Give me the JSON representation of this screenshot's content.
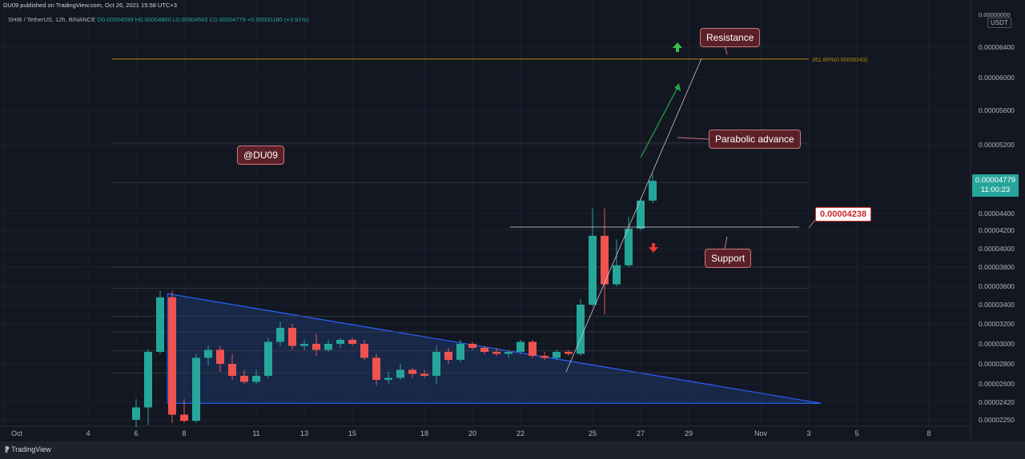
{
  "header": {
    "published": "DU09 published on TradingView.com, Oct 26, 2021 15:58 UTC+3",
    "symbol": "SHIB / TetherUS, 12h, BINANCE",
    "ohlc": "O0.00004599 H0.00004860 L0.00004565 C0.00004779 +0.00000180 (+3.91%)"
  },
  "footer": {
    "logo": "TradingView"
  },
  "callouts": {
    "resistance": "Resistance",
    "parabolic": "Parabolic advance",
    "support": "Support",
    "watermark": "@DU09",
    "price_tag": "0.00004238"
  },
  "price_axis": {
    "currency": "USDT",
    "top": "0.00000000",
    "current": "0.00004779",
    "countdown": "11:00:23"
  },
  "fib": {
    "ext_label": "261.80%(0.00006243)"
  },
  "colors": {
    "up": "#26a69a",
    "down": "#ef5350",
    "background": "#131722",
    "triangle": "#2962ff",
    "fib": "#b8860b"
  },
  "chart_data": {
    "type": "candlestick",
    "x_tick_labels": [
      "Oct",
      "4",
      "6",
      "8",
      "11",
      "13",
      "15",
      "18",
      "20",
      "22",
      "25",
      "27",
      "29",
      "Nov",
      "3",
      "5",
      "8"
    ],
    "y_tick_labels": [
      "0.00006400",
      "0.00006000",
      "0.00005600",
      "0.00005200",
      "0.00004400",
      "0.00004200",
      "0.00004000",
      "0.00003800",
      "0.00003600",
      "0.00003400",
      "0.00003200",
      "0.00003000",
      "0.00002800",
      "0.00002600",
      "0.00002420",
      "0.00002250"
    ],
    "y_ticks": [
      6.4,
      6.0,
      5.6,
      5.2,
      4.4,
      4.2,
      4.0,
      3.8,
      3.6,
      3.4,
      3.2,
      3.0,
      2.8,
      2.6,
      2.42,
      2.25
    ],
    "price_scale": "x 1e-5",
    "candles": [
      {
        "x": 5.5,
        "o": 2.25,
        "h": 2.45,
        "l": 2.18,
        "c": 2.37
      },
      {
        "x": 6.0,
        "o": 2.37,
        "h": 2.95,
        "l": 2.2,
        "c": 2.92
      },
      {
        "x": 6.5,
        "o": 2.92,
        "h": 3.55,
        "l": 2.9,
        "c": 3.48
      },
      {
        "x": 7.0,
        "o": 3.48,
        "h": 3.55,
        "l": 2.22,
        "c": 2.3
      },
      {
        "x": 7.5,
        "o": 2.3,
        "h": 2.45,
        "l": 2.22,
        "c": 2.24
      },
      {
        "x": 8.0,
        "o": 2.24,
        "h": 2.9,
        "l": 2.22,
        "c": 2.86
      },
      {
        "x": 8.5,
        "o": 2.86,
        "h": 2.98,
        "l": 2.78,
        "c": 2.94
      },
      {
        "x": 9.0,
        "o": 2.94,
        "h": 2.98,
        "l": 2.72,
        "c": 2.8
      },
      {
        "x": 9.5,
        "o": 2.8,
        "h": 2.9,
        "l": 2.64,
        "c": 2.68
      },
      {
        "x": 10.0,
        "o": 2.68,
        "h": 2.74,
        "l": 2.6,
        "c": 2.62
      },
      {
        "x": 10.5,
        "o": 2.62,
        "h": 2.74,
        "l": 2.6,
        "c": 2.68
      },
      {
        "x": 11.0,
        "o": 2.68,
        "h": 3.06,
        "l": 2.66,
        "c": 3.02
      },
      {
        "x": 11.5,
        "o": 3.02,
        "h": 3.22,
        "l": 2.98,
        "c": 3.16
      },
      {
        "x": 12.0,
        "o": 3.16,
        "h": 3.2,
        "l": 2.94,
        "c": 2.98
      },
      {
        "x": 12.5,
        "o": 2.98,
        "h": 3.04,
        "l": 2.94,
        "c": 3.0
      },
      {
        "x": 13.0,
        "o": 3.0,
        "h": 3.1,
        "l": 2.88,
        "c": 2.94
      },
      {
        "x": 13.5,
        "o": 2.94,
        "h": 3.04,
        "l": 2.92,
        "c": 3.0
      },
      {
        "x": 14.0,
        "o": 3.0,
        "h": 3.06,
        "l": 2.96,
        "c": 3.04
      },
      {
        "x": 14.5,
        "o": 3.04,
        "h": 3.06,
        "l": 2.98,
        "c": 3.0
      },
      {
        "x": 15.0,
        "o": 3.0,
        "h": 3.04,
        "l": 2.84,
        "c": 2.86
      },
      {
        "x": 15.5,
        "o": 2.86,
        "h": 2.9,
        "l": 2.58,
        "c": 2.64
      },
      {
        "x": 16.0,
        "o": 2.64,
        "h": 2.72,
        "l": 2.6,
        "c": 2.66
      },
      {
        "x": 16.5,
        "o": 2.66,
        "h": 2.8,
        "l": 2.64,
        "c": 2.74
      },
      {
        "x": 17.0,
        "o": 2.74,
        "h": 2.76,
        "l": 2.66,
        "c": 2.7
      },
      {
        "x": 17.5,
        "o": 2.7,
        "h": 2.74,
        "l": 2.66,
        "c": 2.68
      },
      {
        "x": 18.0,
        "o": 2.68,
        "h": 2.98,
        "l": 2.6,
        "c": 2.92
      },
      {
        "x": 18.5,
        "o": 2.92,
        "h": 2.96,
        "l": 2.8,
        "c": 2.84
      },
      {
        "x": 19.0,
        "o": 2.84,
        "h": 3.04,
        "l": 2.82,
        "c": 3.0
      },
      {
        "x": 19.5,
        "o": 3.0,
        "h": 3.02,
        "l": 2.94,
        "c": 2.96
      },
      {
        "x": 20.0,
        "o": 2.96,
        "h": 2.98,
        "l": 2.9,
        "c": 2.92
      },
      {
        "x": 20.5,
        "o": 2.92,
        "h": 2.96,
        "l": 2.88,
        "c": 2.9
      },
      {
        "x": 21.0,
        "o": 2.9,
        "h": 2.94,
        "l": 2.86,
        "c": 2.92
      },
      {
        "x": 21.5,
        "o": 2.92,
        "h": 3.04,
        "l": 2.9,
        "c": 3.02
      },
      {
        "x": 22.0,
        "o": 3.02,
        "h": 3.04,
        "l": 2.86,
        "c": 2.88
      },
      {
        "x": 22.5,
        "o": 2.88,
        "h": 2.92,
        "l": 2.84,
        "c": 2.86
      },
      {
        "x": 23.0,
        "o": 2.86,
        "h": 2.94,
        "l": 2.84,
        "c": 2.92
      },
      {
        "x": 23.5,
        "o": 2.92,
        "h": 2.94,
        "l": 2.88,
        "c": 2.9
      },
      {
        "x": 24.0,
        "o": 2.9,
        "h": 3.46,
        "l": 2.88,
        "c": 3.4
      },
      {
        "x": 24.5,
        "o": 3.4,
        "h": 4.46,
        "l": 3.38,
        "c": 4.14
      },
      {
        "x": 25.0,
        "o": 4.14,
        "h": 4.46,
        "l": 3.3,
        "c": 3.62
      },
      {
        "x": 25.5,
        "o": 3.62,
        "h": 4.1,
        "l": 3.6,
        "c": 3.82
      },
      {
        "x": 26.0,
        "o": 3.82,
        "h": 4.36,
        "l": 3.8,
        "c": 4.22
      },
      {
        "x": 26.5,
        "o": 4.22,
        "h": 4.58,
        "l": 4.2,
        "c": 4.55
      },
      {
        "x": 27.0,
        "o": 4.55,
        "h": 4.86,
        "l": 4.52,
        "c": 4.78
      }
    ],
    "triangle": {
      "top": [
        7.0,
        3.52
      ],
      "apex": [
        34.0,
        2.41
      ],
      "base": 2.41
    },
    "levels": {
      "support": 4.238,
      "resistance": 6.243
    }
  }
}
